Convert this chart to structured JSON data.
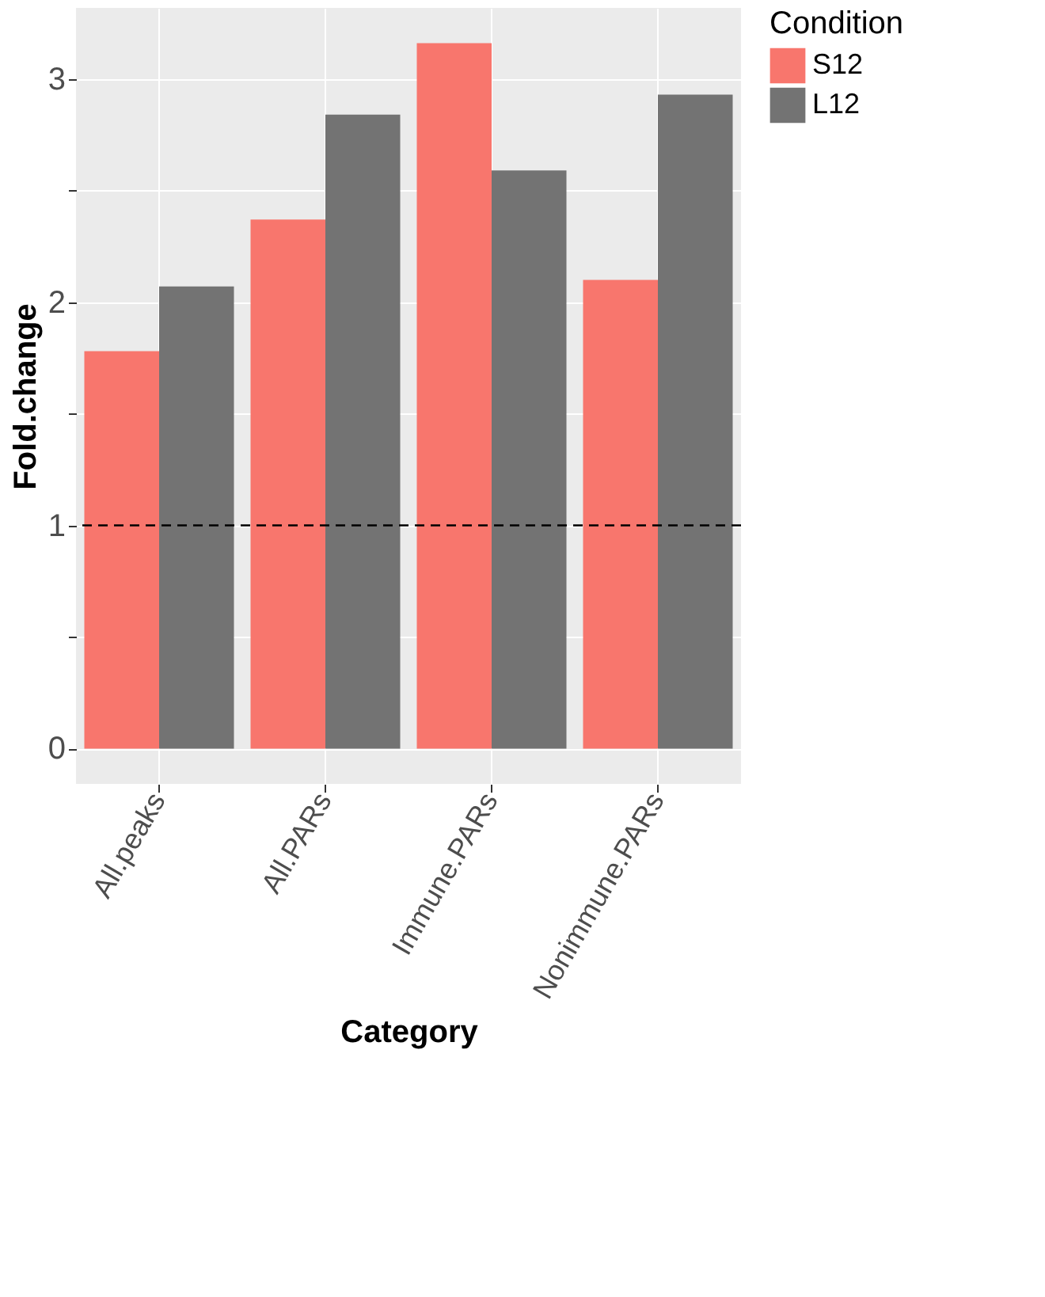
{
  "chart_data": {
    "type": "bar",
    "xlabel": "Category",
    "ylabel": "Fold.change",
    "legend_title": "Condition",
    "categories": [
      "All.peaks",
      "All.PARs",
      "Immune.PARs",
      "Nonimmune.PARs"
    ],
    "series": [
      {
        "name": "S12",
        "color": "#f8766d",
        "values": [
          1.78,
          2.37,
          3.16,
          2.1
        ]
      },
      {
        "name": "L12",
        "color": "#737373",
        "values": [
          2.07,
          2.84,
          2.59,
          2.93
        ]
      }
    ],
    "ylim": [
      -0.158,
      3.318
    ],
    "yticks": [
      0,
      {
        "value": 0.5,
        "label": null
      },
      1,
      {
        "value": 1.5,
        "label": null
      },
      2,
      {
        "value": 2.5,
        "label": null
      },
      3
    ],
    "ref_lines": [
      {
        "axis": "y",
        "value": 1,
        "color": "#000000",
        "line_style": "dashed"
      }
    ],
    "grid": true,
    "legend": "right"
  }
}
